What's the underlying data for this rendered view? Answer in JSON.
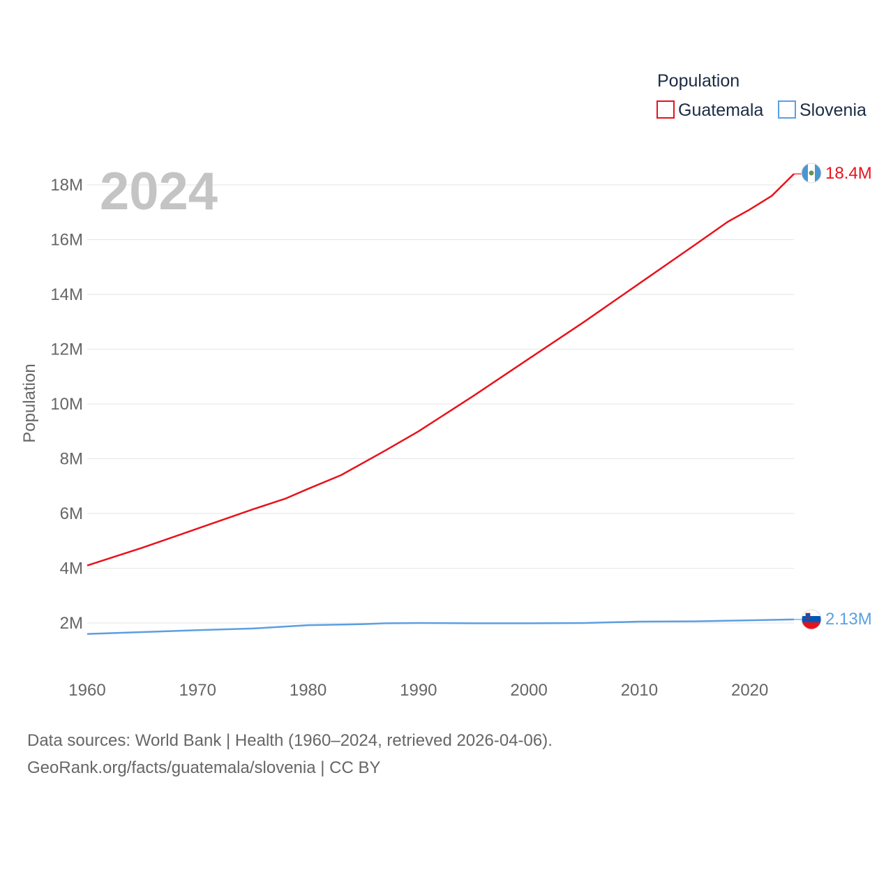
{
  "chart_data": {
    "type": "line",
    "title": "Population",
    "ylabel": "Population",
    "xlabel": "",
    "current_year": "2024",
    "xlim": [
      1960,
      2024
    ],
    "ylim": [
      0,
      19000000
    ],
    "x_ticks": [
      1960,
      1970,
      1980,
      1990,
      2000,
      2010,
      2020
    ],
    "y_ticks": [
      {
        "value": 2000000,
        "label": "2M"
      },
      {
        "value": 4000000,
        "label": "4M"
      },
      {
        "value": 6000000,
        "label": "6M"
      },
      {
        "value": 8000000,
        "label": "8M"
      },
      {
        "value": 10000000,
        "label": "10M"
      },
      {
        "value": 12000000,
        "label": "12M"
      },
      {
        "value": 14000000,
        "label": "14M"
      },
      {
        "value": 16000000,
        "label": "16M"
      },
      {
        "value": 18000000,
        "label": "18M"
      }
    ],
    "legend_title": "Population",
    "legend_position": "top-right",
    "series": [
      {
        "name": "Guatemala",
        "color": "#e8121b",
        "end_label": "18.4M",
        "flag": "guatemala-flag",
        "x": [
          1960,
          1965,
          1970,
          1975,
          1978,
          1980,
          1983,
          1987,
          1990,
          1995,
          2000,
          2005,
          2010,
          2015,
          2018,
          2020,
          2022,
          2024
        ],
        "values": [
          4100000,
          4750000,
          5450000,
          6150000,
          6550000,
          6900000,
          7400000,
          8300000,
          9000000,
          10300000,
          11650000,
          13000000,
          14400000,
          15800000,
          16650000,
          17100000,
          17600000,
          18400000
        ]
      },
      {
        "name": "Slovenia",
        "color": "#5b9fe2",
        "end_label": "2.13M",
        "flag": "slovenia-flag",
        "x": [
          1960,
          1965,
          1970,
          1975,
          1980,
          1985,
          1987,
          1990,
          1995,
          2000,
          2005,
          2010,
          2015,
          2020,
          2024
        ],
        "values": [
          1600000,
          1670000,
          1740000,
          1800000,
          1920000,
          1960000,
          1990000,
          2000000,
          1990000,
          1990000,
          2000000,
          2050000,
          2060000,
          2100000,
          2130000
        ]
      }
    ]
  },
  "footer": {
    "line1": "Data sources: World Bank | Health (1960–2024, retrieved 2026-04-06).",
    "line2": "GeoRank.org/facts/guatemala/slovenia | CC BY"
  }
}
